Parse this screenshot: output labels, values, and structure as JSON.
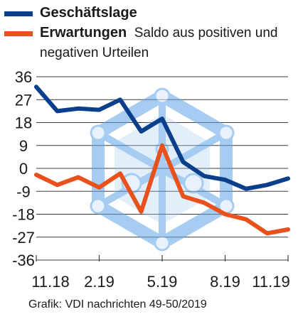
{
  "legend": {
    "series1": "Geschäftslage",
    "series2": "Erwartungen",
    "note": "Saldo aus positiven und negativen Urteilen"
  },
  "source": "Grafik: VDI nachrichten 49-50/2019",
  "watermark_icon": "network-hexagon-icon",
  "chart_data": {
    "type": "line",
    "x": [
      "11.18",
      "12.18",
      "1.19",
      "2.19",
      "3.19",
      "4.19",
      "5.19",
      "6.19",
      "7.19",
      "8.19",
      "9.19",
      "10.19",
      "11.19"
    ],
    "x_tick_labels": [
      "11.18",
      "2.19",
      "5.19",
      "8.19",
      "11.19"
    ],
    "y_tick_labels": [
      "36",
      "27",
      "18",
      "9",
      "0",
      "-9",
      "-18",
      "-27",
      "-36"
    ],
    "ylim": [
      -36,
      36
    ],
    "y_ticks": [
      36,
      27,
      18,
      9,
      0,
      -9,
      -18,
      -27,
      -36
    ],
    "grid": "horizontal",
    "legend_position": "top-left",
    "series": [
      {
        "name": "Geschäftslage",
        "color": "#0a3f8c",
        "values": [
          32,
          22.5,
          23.5,
          23,
          27,
          14.5,
          19.5,
          2.5,
          -3,
          -4.5,
          -8,
          -6.5,
          -4
        ]
      },
      {
        "name": "Erwartungen",
        "color": "#e8501c",
        "values": [
          -2.5,
          -6.5,
          -3.5,
          -7.5,
          -2,
          -17,
          9,
          -11,
          -13.5,
          -18,
          -20,
          -25.5,
          -24
        ]
      }
    ]
  }
}
